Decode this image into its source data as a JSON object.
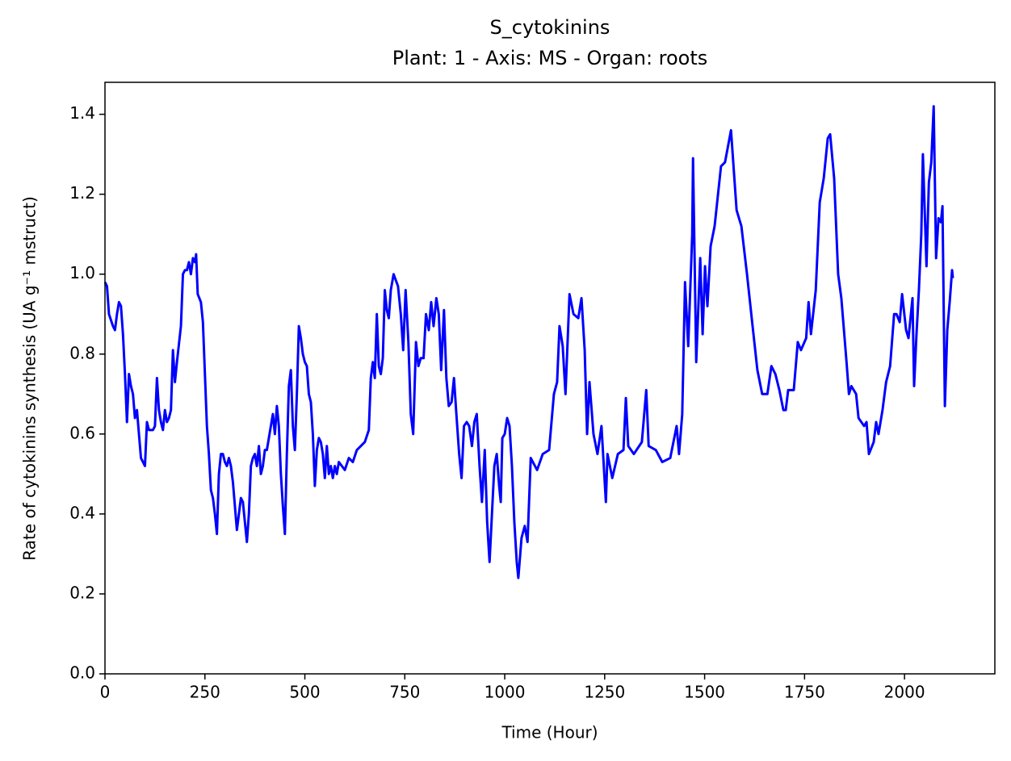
{
  "chart_data": {
    "type": "line",
    "title": "S_cytokinins",
    "subtitle": "Plant: 1 - Axis: MS - Organ: roots",
    "xlabel": "Time (Hour)",
    "ylabel": "Rate of cytokinins synthesis (UA g⁻¹ mstruct)",
    "color": "#0000ff",
    "xlim": [
      0,
      2226
    ],
    "ylim": [
      0,
      1.48
    ],
    "xticks": [
      0,
      250,
      500,
      750,
      1000,
      1250,
      1500,
      1750,
      2000
    ],
    "yticks": [
      {
        "value": 0,
        "label": "0.0"
      },
      0.2,
      0.4,
      0.6,
      0.8,
      {
        "value": 1,
        "label": "1.0"
      },
      1.2,
      1.4
    ],
    "x": [
      0,
      5,
      10,
      20,
      25,
      30,
      35,
      40,
      45,
      50,
      55,
      60,
      65,
      70,
      75,
      80,
      85,
      90,
      100,
      105,
      110,
      120,
      125,
      130,
      135,
      140,
      145,
      150,
      155,
      160,
      165,
      170,
      175,
      180,
      190,
      195,
      200,
      205,
      210,
      215,
      220,
      225,
      228,
      232,
      240,
      245,
      250,
      255,
      260,
      265,
      270,
      275,
      280,
      285,
      290,
      295,
      300,
      305,
      310,
      315,
      320,
      325,
      330,
      335,
      340,
      345,
      350,
      355,
      360,
      365,
      370,
      375,
      380,
      385,
      390,
      395,
      400,
      405,
      410,
      415,
      420,
      425,
      430,
      435,
      440,
      445,
      450,
      455,
      460,
      465,
      470,
      475,
      480,
      485,
      490,
      495,
      500,
      505,
      510,
      515,
      520,
      525,
      530,
      535,
      540,
      545,
      550,
      555,
      560,
      565,
      570,
      575,
      580,
      585,
      600,
      610,
      620,
      630,
      640,
      650,
      660,
      665,
      670,
      675,
      680,
      685,
      690,
      695,
      700,
      705,
      710,
      715,
      722,
      733,
      740,
      746,
      752,
      759,
      765,
      771,
      778,
      784,
      790,
      797,
      803,
      810,
      816,
      822,
      829,
      835,
      841,
      848,
      854,
      860,
      867,
      873,
      879,
      886,
      892,
      898,
      905,
      911,
      918,
      924,
      930,
      937,
      943,
      950,
      956,
      962,
      968,
      974,
      980,
      986,
      990,
      994,
      1000,
      1006,
      1012,
      1018,
      1024,
      1030,
      1034,
      1042,
      1050,
      1057,
      1065,
      1081,
      1095,
      1111,
      1123,
      1131,
      1137,
      1145,
      1152,
      1162,
      1172,
      1184,
      1192,
      1200,
      1206,
      1212,
      1222,
      1232,
      1242,
      1253,
      1257,
      1269,
      1283,
      1297,
      1303,
      1309,
      1323,
      1343,
      1354,
      1360,
      1378,
      1394,
      1414,
      1430,
      1436,
      1444,
      1451,
      1459,
      1469,
      1471,
      1479,
      1489,
      1495,
      1501,
      1507,
      1515,
      1525,
      1541,
      1551,
      1566,
      1580,
      1592,
      1606,
      1620,
      1632,
      1644,
      1657,
      1667,
      1677,
      1687,
      1697,
      1703,
      1709,
      1723,
      1733,
      1741,
      1754,
      1760,
      1766,
      1778,
      1788,
      1798,
      1808,
      1814,
      1824,
      1834,
      1842,
      1855,
      1861,
      1867,
      1879,
      1885,
      1899,
      1905,
      1911,
      1923,
      1929,
      1935,
      1945,
      1954,
      1964,
      1974,
      1980,
      1988,
      1994,
      2004,
      2010,
      2020,
      2024,
      2030,
      2036,
      2042,
      2046,
      2055,
      2061,
      2067,
      2073,
      2079,
      2085,
      2091,
      2095,
      2101,
      2107,
      2113,
      2119,
      2121
    ],
    "values": [
      0.98,
      0.97,
      0.9,
      0.87,
      0.86,
      0.9,
      0.93,
      0.92,
      0.85,
      0.75,
      0.63,
      0.75,
      0.72,
      0.7,
      0.64,
      0.66,
      0.6,
      0.54,
      0.52,
      0.63,
      0.61,
      0.61,
      0.62,
      0.74,
      0.66,
      0.63,
      0.61,
      0.66,
      0.63,
      0.64,
      0.66,
      0.81,
      0.73,
      0.78,
      0.87,
      1.0,
      1.01,
      1.01,
      1.03,
      1.0,
      1.04,
      1.03,
      1.05,
      0.95,
      0.93,
      0.88,
      0.75,
      0.62,
      0.55,
      0.46,
      0.44,
      0.4,
      0.35,
      0.5,
      0.55,
      0.55,
      0.53,
      0.52,
      0.54,
      0.52,
      0.48,
      0.42,
      0.36,
      0.4,
      0.44,
      0.43,
      0.38,
      0.33,
      0.4,
      0.52,
      0.54,
      0.55,
      0.52,
      0.57,
      0.5,
      0.52,
      0.56,
      0.56,
      0.59,
      0.62,
      0.65,
      0.6,
      0.67,
      0.62,
      0.5,
      0.42,
      0.35,
      0.55,
      0.72,
      0.76,
      0.62,
      0.56,
      0.7,
      0.87,
      0.84,
      0.8,
      0.78,
      0.77,
      0.7,
      0.68,
      0.6,
      0.47,
      0.56,
      0.59,
      0.58,
      0.55,
      0.49,
      0.57,
      0.5,
      0.52,
      0.49,
      0.52,
      0.5,
      0.53,
      0.51,
      0.54,
      0.53,
      0.56,
      0.57,
      0.58,
      0.61,
      0.74,
      0.78,
      0.74,
      0.9,
      0.77,
      0.75,
      0.79,
      0.96,
      0.91,
      0.89,
      0.96,
      1.0,
      0.97,
      0.9,
      0.81,
      0.96,
      0.83,
      0.65,
      0.6,
      0.83,
      0.77,
      0.79,
      0.79,
      0.9,
      0.86,
      0.93,
      0.87,
      0.94,
      0.9,
      0.76,
      0.91,
      0.74,
      0.67,
      0.68,
      0.74,
      0.65,
      0.55,
      0.49,
      0.62,
      0.63,
      0.62,
      0.57,
      0.63,
      0.65,
      0.52,
      0.43,
      0.56,
      0.38,
      0.28,
      0.4,
      0.52,
      0.55,
      0.47,
      0.43,
      0.59,
      0.6,
      0.64,
      0.62,
      0.52,
      0.38,
      0.28,
      0.24,
      0.34,
      0.37,
      0.33,
      0.54,
      0.51,
      0.55,
      0.56,
      0.7,
      0.73,
      0.87,
      0.82,
      0.7,
      0.95,
      0.9,
      0.89,
      0.94,
      0.81,
      0.6,
      0.73,
      0.6,
      0.55,
      0.62,
      0.43,
      0.55,
      0.49,
      0.55,
      0.56,
      0.69,
      0.57,
      0.55,
      0.58,
      0.71,
      0.57,
      0.56,
      0.53,
      0.54,
      0.62,
      0.55,
      0.65,
      0.98,
      0.82,
      1.1,
      1.29,
      0.78,
      1.04,
      0.85,
      1.02,
      0.92,
      1.07,
      1.12,
      1.27,
      1.28,
      1.36,
      1.16,
      1.12,
      1.0,
      0.87,
      0.76,
      0.7,
      0.7,
      0.77,
      0.75,
      0.71,
      0.66,
      0.66,
      0.71,
      0.71,
      0.83,
      0.81,
      0.84,
      0.93,
      0.85,
      0.96,
      1.18,
      1.24,
      1.34,
      1.35,
      1.24,
      1.0,
      0.94,
      0.78,
      0.7,
      0.72,
      0.7,
      0.64,
      0.62,
      0.63,
      0.55,
      0.58,
      0.63,
      0.6,
      0.66,
      0.73,
      0.77,
      0.9,
      0.9,
      0.88,
      0.95,
      0.86,
      0.84,
      0.94,
      0.72,
      0.85,
      0.96,
      1.1,
      1.3,
      1.02,
      1.23,
      1.28,
      1.42,
      1.04,
      1.14,
      1.13,
      1.17,
      0.67,
      0.86,
      0.93,
      1.01,
      0.99
    ]
  }
}
